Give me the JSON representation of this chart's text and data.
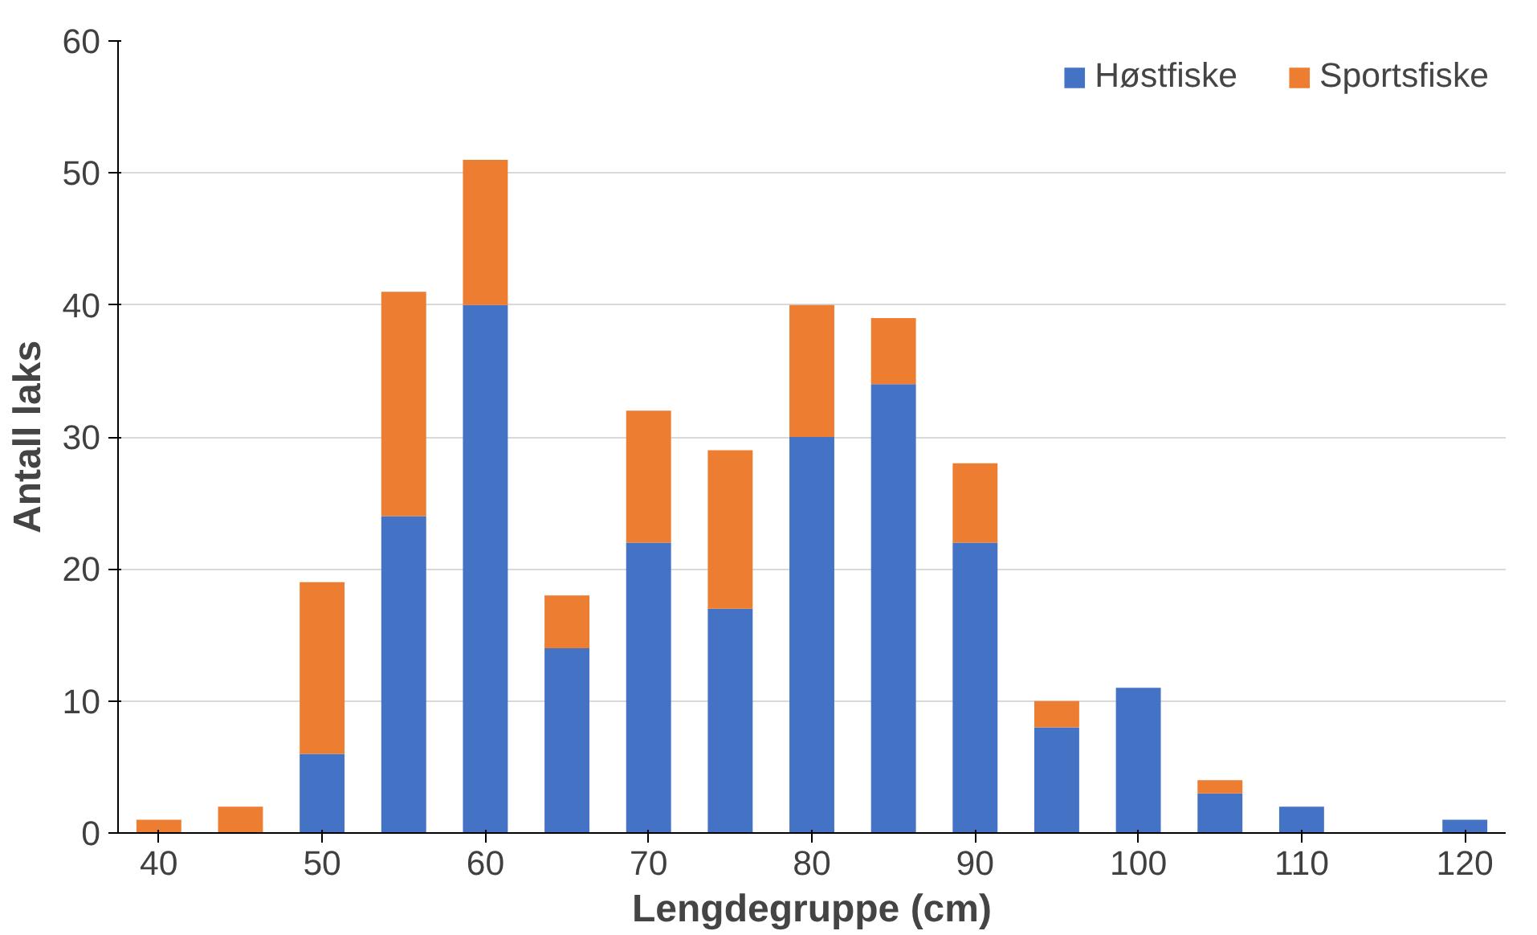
{
  "chart_data": {
    "type": "bar",
    "stacked": true,
    "xlabel": "Lengdegruppe (cm)",
    "ylabel": "Antall laks",
    "categories": [
      "40",
      null,
      "50",
      null,
      "60",
      null,
      "70",
      null,
      "80",
      null,
      "90",
      null,
      "100",
      null,
      "110",
      null,
      "120"
    ],
    "series": [
      {
        "name": "Høstfiske",
        "color": "#4472c4",
        "values": [
          0,
          0,
          6,
          24,
          40,
          14,
          22,
          17,
          30,
          34,
          22,
          8,
          11,
          3,
          2,
          0,
          1
        ]
      },
      {
        "name": "Sportsfiske",
        "color": "#ed7d31",
        "values": [
          1,
          2,
          13,
          17,
          11,
          4,
          10,
          12,
          10,
          5,
          6,
          2,
          0,
          1,
          0,
          0,
          0
        ]
      }
    ],
    "ylim": [
      0,
      60
    ],
    "yticks": [
      0,
      10,
      20,
      30,
      40,
      50,
      60
    ],
    "grid": "y",
    "legend": "top right"
  }
}
